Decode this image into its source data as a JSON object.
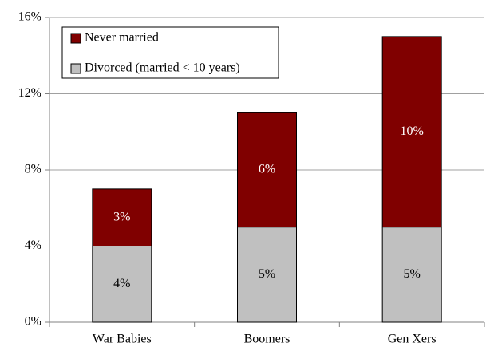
{
  "chart_data": {
    "type": "stacked_bar",
    "categories": [
      "War Babies",
      "Boomers",
      "Gen Xers"
    ],
    "series": [
      {
        "name": "Divorced (married < 10 years)",
        "color": "#c0c0c0",
        "label_color": "#000000",
        "values": [
          4,
          5,
          5
        ],
        "value_labels": [
          "4%",
          "5%",
          "5%"
        ]
      },
      {
        "name": "Never married",
        "color": "#800000",
        "label_color": "#ffffff",
        "values": [
          3,
          6,
          10
        ],
        "value_labels": [
          "3%",
          "6%",
          "10%"
        ]
      }
    ],
    "ylim": [
      0,
      16
    ],
    "yticks": [
      {
        "value": 0,
        "label": "0%"
      },
      {
        "value": 4,
        "label": "4%"
      },
      {
        "value": 8,
        "label": "8%"
      },
      {
        "value": 12,
        "label": "12%"
      },
      {
        "value": 16,
        "label": "16%"
      }
    ],
    "grid": true,
    "legend": "top-left"
  }
}
